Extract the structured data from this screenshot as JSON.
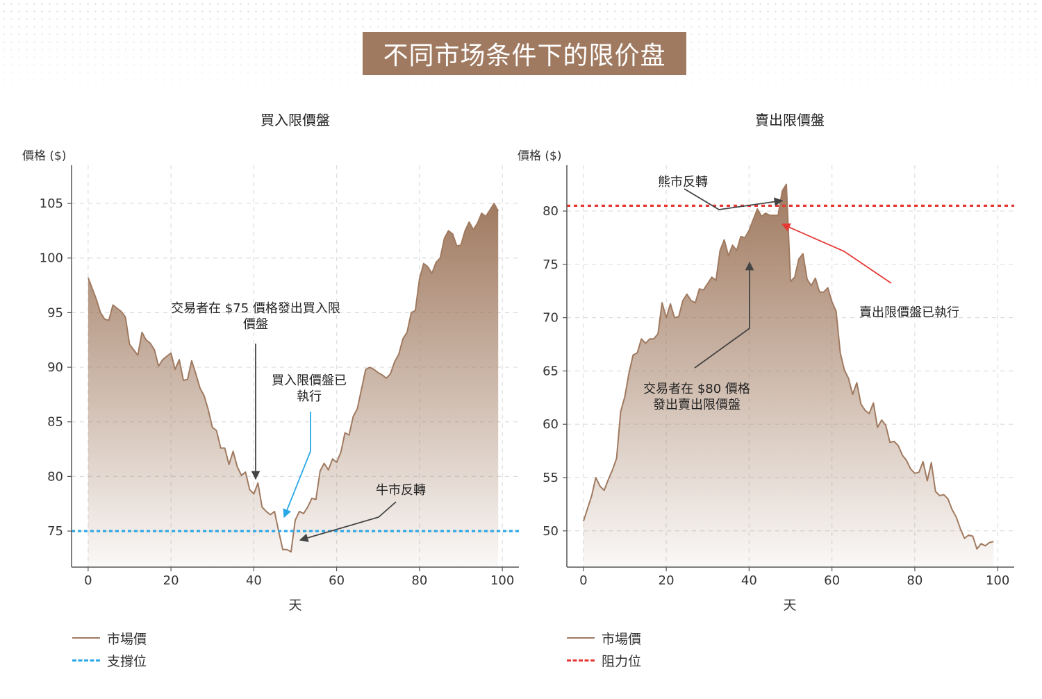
{
  "page_title": "不同市场条件下的限价盘",
  "chart_data": [
    {
      "type": "area",
      "title": "買入限價盤",
      "xlabel": "天",
      "ylabel": "價格 ($)",
      "xlim": [
        -4,
        104
      ],
      "ylim": [
        71.7,
        108.5
      ],
      "xticks": [
        0,
        20,
        40,
        60,
        80,
        100
      ],
      "yticks": [
        75,
        80,
        85,
        90,
        95,
        100,
        105
      ],
      "grid": true,
      "legend_position": "bottom-left",
      "series": [
        {
          "name": "市場價",
          "color": "#a07a60",
          "x": [
            0,
            2,
            3,
            4,
            5,
            6,
            7,
            8,
            9,
            10,
            11,
            12,
            13,
            14,
            15,
            16,
            17,
            18,
            19,
            20,
            21,
            22,
            23,
            24,
            25,
            26,
            27,
            28,
            29,
            30,
            31,
            32,
            33,
            34,
            35,
            36,
            37,
            38,
            39,
            40,
            41,
            42,
            43,
            44,
            45,
            46,
            47,
            48,
            49,
            50,
            51,
            52,
            53,
            54,
            55,
            56,
            57,
            58,
            59,
            60,
            61,
            62,
            63,
            64,
            65,
            66,
            67,
            68,
            69,
            70,
            71,
            72,
            73,
            74,
            75,
            76,
            77,
            78,
            79,
            80,
            81,
            82,
            83,
            84,
            85,
            86,
            87,
            88,
            89,
            90,
            91,
            92,
            93,
            94,
            95,
            96,
            97,
            98,
            99
          ],
          "y": [
            98.2,
            96.2,
            95.0,
            94.4,
            94.3,
            95.7,
            95.4,
            95.1,
            94.6,
            92.1,
            91.6,
            91.1,
            93.2,
            92.5,
            92.2,
            91.6,
            90.1,
            90.7,
            91.0,
            91.3,
            89.8,
            90.7,
            88.8,
            88.9,
            90.6,
            89.4,
            88.1,
            87.4,
            86.1,
            84.5,
            84.2,
            82.6,
            82.6,
            81.1,
            82.3,
            80.9,
            80.1,
            80.4,
            78.8,
            78.4,
            79.4,
            77.2,
            76.8,
            76.5,
            76.8,
            75.0,
            73.3,
            73.3,
            73.1,
            76.0,
            76.8,
            76.6,
            77.2,
            78.0,
            77.9,
            80.5,
            81.2,
            80.6,
            81.6,
            81.3,
            82.2,
            84.0,
            83.8,
            85.5,
            86.2,
            88.0,
            89.8,
            90.0,
            89.8,
            89.5,
            89.3,
            89.0,
            89.4,
            90.5,
            91.2,
            92.6,
            93.2,
            95.0,
            95.2,
            98.1,
            99.5,
            99.2,
            98.6,
            99.6,
            100.0,
            101.8,
            102.5,
            102.2,
            101.1,
            101.2,
            102.5,
            103.3,
            102.6,
            103.2,
            104.1,
            103.8,
            104.4,
            105.0,
            104.3
          ]
        },
        {
          "name": "支撐位",
          "color": "#2aa7e6",
          "value": 75
        }
      ],
      "annotations": [
        {
          "text": "交易者在 $75 價格發出買入限價盤",
          "x": 40,
          "y": 79.6
        },
        {
          "text": "買入限價盤已執行",
          "x": 47,
          "y": 76.0
        },
        {
          "text": "牛市反轉",
          "x": 50,
          "y": 73.2
        }
      ]
    },
    {
      "type": "area",
      "title": "賣出限價盤",
      "xlabel": "天",
      "ylabel": "價格 ($)",
      "xlim": [
        -4,
        104
      ],
      "ylim": [
        46.6,
        84.3
      ],
      "xticks": [
        0,
        20,
        40,
        60,
        80,
        100
      ],
      "yticks": [
        50,
        55,
        60,
        65,
        70,
        75,
        80
      ],
      "grid": true,
      "legend_position": "bottom-left",
      "series": [
        {
          "name": "市場價",
          "color": "#a07a60",
          "x": [
            0,
            1,
            2,
            3,
            4,
            5,
            6,
            7,
            8,
            9,
            10,
            11,
            12,
            13,
            14,
            15,
            16,
            17,
            18,
            19,
            20,
            21,
            22,
            23,
            24,
            25,
            26,
            27,
            28,
            29,
            30,
            31,
            32,
            33,
            34,
            35,
            36,
            37,
            38,
            39,
            40,
            41,
            42,
            43,
            44,
            45,
            46,
            47,
            48,
            49,
            50,
            51,
            52,
            53,
            54,
            55,
            56,
            57,
            58,
            59,
            60,
            61,
            62,
            63,
            64,
            65,
            66,
            67,
            68,
            69,
            70,
            71,
            72,
            73,
            74,
            75,
            76,
            77,
            78,
            79,
            80,
            81,
            82,
            83,
            84,
            85,
            86,
            87,
            88,
            89,
            90,
            91,
            92,
            93,
            94,
            95,
            96,
            97,
            98,
            99
          ],
          "y": [
            50.9,
            52.1,
            53.3,
            55.0,
            54.2,
            53.8,
            54.8,
            55.7,
            56.8,
            61.2,
            62.6,
            64.8,
            66.5,
            66.7,
            68.0,
            67.6,
            68.0,
            68.0,
            68.5,
            71.4,
            70.0,
            71.3,
            70.0,
            70.1,
            71.6,
            72.2,
            71.6,
            71.4,
            72.7,
            72.6,
            73.2,
            73.8,
            73.5,
            76.3,
            77.3,
            75.8,
            76.8,
            76.3,
            77.6,
            77.5,
            78.2,
            79.2,
            80.2,
            79.5,
            79.8,
            79.6,
            79.6,
            79.6,
            81.9,
            82.5,
            73.4,
            73.8,
            75.5,
            76.0,
            73.6,
            73.0,
            73.7,
            72.4,
            72.4,
            72.8,
            71.5,
            70.6,
            66.7,
            65.1,
            64.3,
            62.8,
            63.9,
            61.9,
            61.3,
            61.0,
            62.0,
            59.7,
            60.4,
            59.9,
            58.3,
            58.4,
            58.0,
            57.1,
            56.6,
            55.8,
            55.4,
            55.5,
            56.5,
            54.7,
            56.4,
            53.7,
            53.3,
            53.4,
            53.0,
            52.0,
            51.3,
            50.2,
            49.3,
            49.6,
            49.5,
            48.3,
            48.8,
            48.6,
            48.9,
            49.0
          ]
        },
        {
          "name": "阻力位",
          "color": "#e53935",
          "value": 80.5
        }
      ],
      "annotations": [
        {
          "text": "熊市反轉",
          "x": 48,
          "y": 82.4
        },
        {
          "text": "賣出限價盤已執行",
          "x": 48,
          "y": 80.0
        },
        {
          "text": "交易者在 $80 價格發出賣出限價盤",
          "x": 40,
          "y": 77.8
        }
      ]
    }
  ]
}
